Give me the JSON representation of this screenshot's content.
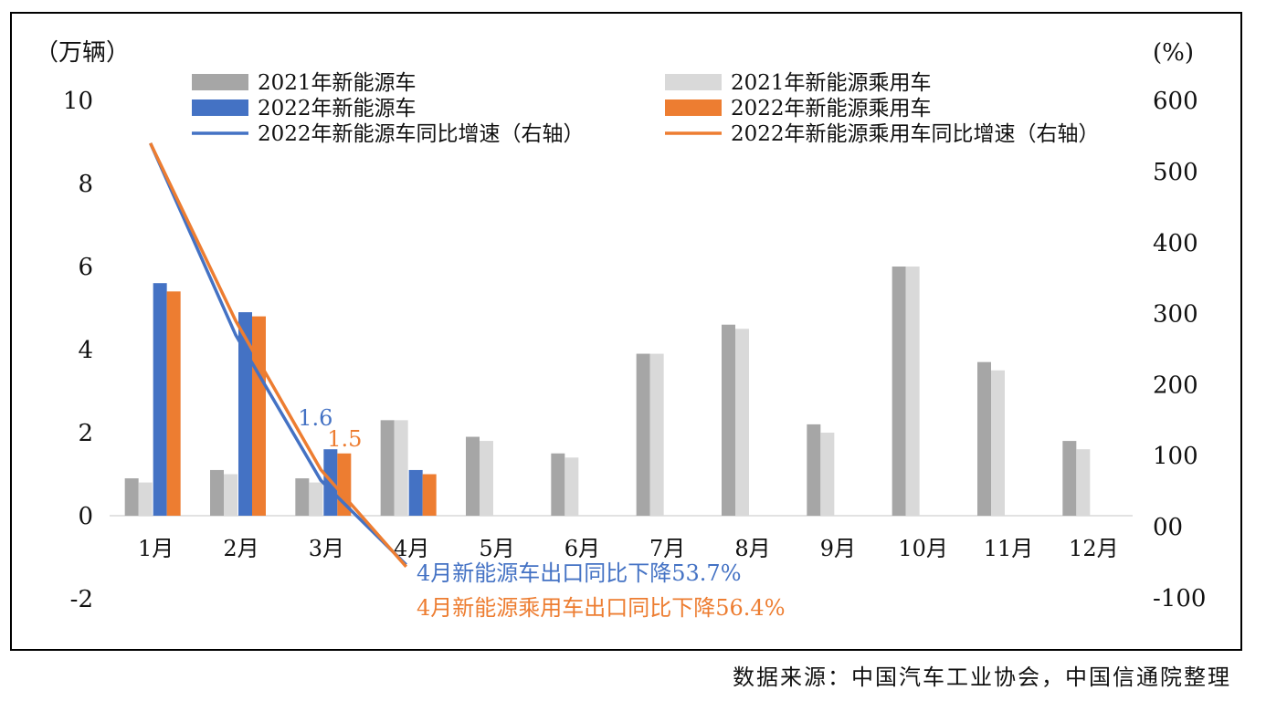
{
  "chart_data": {
    "type": "bar",
    "left_unit": "（万辆）",
    "right_unit": "(%)",
    "categories": [
      "1月",
      "2月",
      "3月",
      "4月",
      "5月",
      "6月",
      "7月",
      "8月",
      "9月",
      "10月",
      "11月",
      "12月"
    ],
    "ylim": [
      -2,
      10
    ],
    "y_ticks": [
      "-2",
      "0",
      "2",
      "4",
      "6",
      "8",
      "10"
    ],
    "y2lim": [
      -100,
      600
    ],
    "y2_ticks": [
      "-100",
      "00",
      "100",
      "200",
      "300",
      "400",
      "500",
      "600"
    ],
    "series": [
      {
        "name": "2021年新能源车",
        "kind": "bar",
        "color": "#a6a6a6",
        "values": [
          0.9,
          1.1,
          0.9,
          2.3,
          1.9,
          1.5,
          3.9,
          4.6,
          2.2,
          6.0,
          3.7,
          1.8
        ]
      },
      {
        "name": "2021年新能源乘用车",
        "kind": "bar",
        "color": "#d9d9d9",
        "values": [
          0.8,
          1.0,
          0.8,
          2.3,
          1.8,
          1.4,
          3.9,
          4.5,
          2.0,
          6.0,
          3.5,
          1.6
        ]
      },
      {
        "name": "2022年新能源车",
        "kind": "bar",
        "color": "#4472c4",
        "values": [
          5.6,
          4.9,
          1.6,
          1.1,
          null,
          null,
          null,
          null,
          null,
          null,
          null,
          null
        ]
      },
      {
        "name": "2022年新能源乘用车",
        "kind": "bar",
        "color": "#ed7d31",
        "values": [
          5.4,
          4.8,
          1.5,
          1.0,
          null,
          null,
          null,
          null,
          null,
          null,
          null,
          null
        ]
      },
      {
        "name": "2022年新能源车同比增速（右轴）",
        "kind": "line",
        "color": "#4472c4",
        "values": [
          540,
          270,
          65,
          -53.7,
          null,
          null,
          null,
          null,
          null,
          null,
          null,
          null
        ]
      },
      {
        "name": "2022年新能源乘用车同比增速（右轴）",
        "kind": "line",
        "color": "#ed7d31",
        "values": [
          540,
          290,
          80,
          -56.4,
          null,
          null,
          null,
          null,
          null,
          null,
          null,
          null
        ]
      }
    ],
    "data_labels": [
      {
        "text": "1.6",
        "color": "#4472c4"
      },
      {
        "text": "1.5",
        "color": "#ed7d31"
      }
    ],
    "annotations": [
      {
        "text": "4月新能源车出口同比下降53.7%",
        "color": "#4472c4"
      },
      {
        "text": "4月新能源乘用车出口同比下降56.4%",
        "color": "#ed7d31"
      }
    ]
  },
  "source_note": "数据来源：中国汽车工业协会，中国信通院整理"
}
